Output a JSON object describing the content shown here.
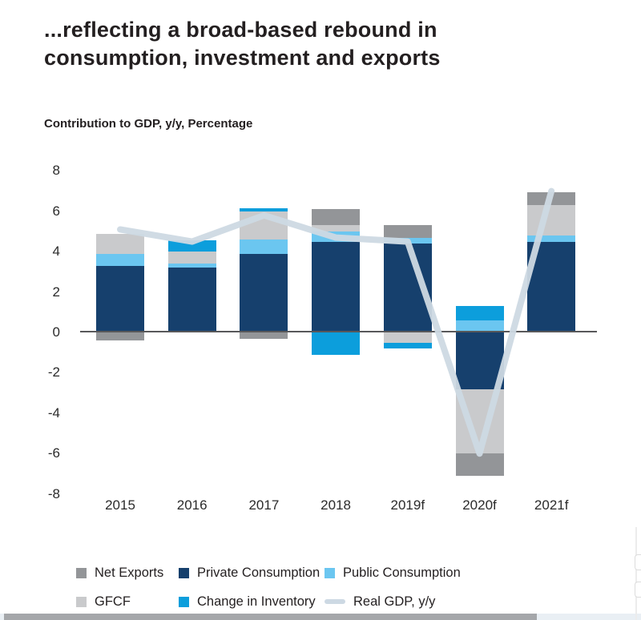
{
  "title": "...reflecting a broad-based rebound in\nconsumption, investment and exports",
  "subtitle": "Contribution to GDP, y/y, Percentage",
  "chart_data": {
    "type": "bar",
    "subtype": "stacked-bar-with-line-overlay",
    "title": "",
    "xlabel": "",
    "ylabel": "Contribution to GDP, y/y, Percentage",
    "ylim": [
      -8,
      8
    ],
    "ytick_step": 2,
    "yticks": [
      8,
      6,
      4,
      2,
      0,
      -2,
      -4,
      -6,
      -8
    ],
    "grid": false,
    "legend_position": "bottom",
    "categories": [
      "2015",
      "2016",
      "2017",
      "2018",
      "2019f",
      "2020f",
      "2021f"
    ],
    "series": [
      {
        "name": "Private Consumption",
        "color": "#16406D",
        "values": [
          3.3,
          3.2,
          3.9,
          4.5,
          4.4,
          -2.8,
          4.5
        ]
      },
      {
        "name": "Public Consumption",
        "color": "#6BC6F0",
        "values": [
          0.6,
          0.2,
          0.7,
          0.5,
          0.3,
          0.6,
          0.3
        ]
      },
      {
        "name": "GFCF",
        "color": "#C9CACC",
        "values": [
          1.0,
          0.6,
          1.4,
          0.3,
          -0.5,
          -3.2,
          1.5
        ]
      },
      {
        "name": "Change in Inventory",
        "color": "#0C9EDC",
        "values": [
          0.0,
          0.55,
          0.15,
          -1.1,
          -0.3,
          0.7,
          0.0
        ]
      },
      {
        "name": "Net Exports",
        "color": "#939598",
        "values": [
          -0.4,
          0.0,
          -0.3,
          0.8,
          0.6,
          -1.1,
          0.65
        ]
      }
    ],
    "line_series": {
      "name": "Real GDP, y/y",
      "color": "#CDD9E3",
      "values": [
        5.1,
        4.5,
        5.8,
        4.7,
        4.5,
        -6.0,
        7.0
      ]
    }
  },
  "legend": {
    "items": [
      {
        "label": "Net Exports",
        "color": "#939598",
        "symbol": "swatch"
      },
      {
        "label": "Private Consumption",
        "color": "#16406D",
        "symbol": "swatch"
      },
      {
        "label": "Public Consumption",
        "color": "#6BC6F0",
        "symbol": "swatch"
      },
      {
        "label": "GFCF",
        "color": "#C9CACC",
        "symbol": "swatch"
      },
      {
        "label": "Change in Inventory",
        "color": "#0C9EDC",
        "symbol": "swatch"
      },
      {
        "label": "Real GDP, y/y",
        "color": "#CDD9E3",
        "symbol": "line"
      }
    ]
  },
  "ui": {
    "axis_color": "#58585A",
    "text_color": "#231F20",
    "scrollbar_thumb_color": "#A5A7AA",
    "scrollbar_track_color": "#E9EFF4"
  }
}
